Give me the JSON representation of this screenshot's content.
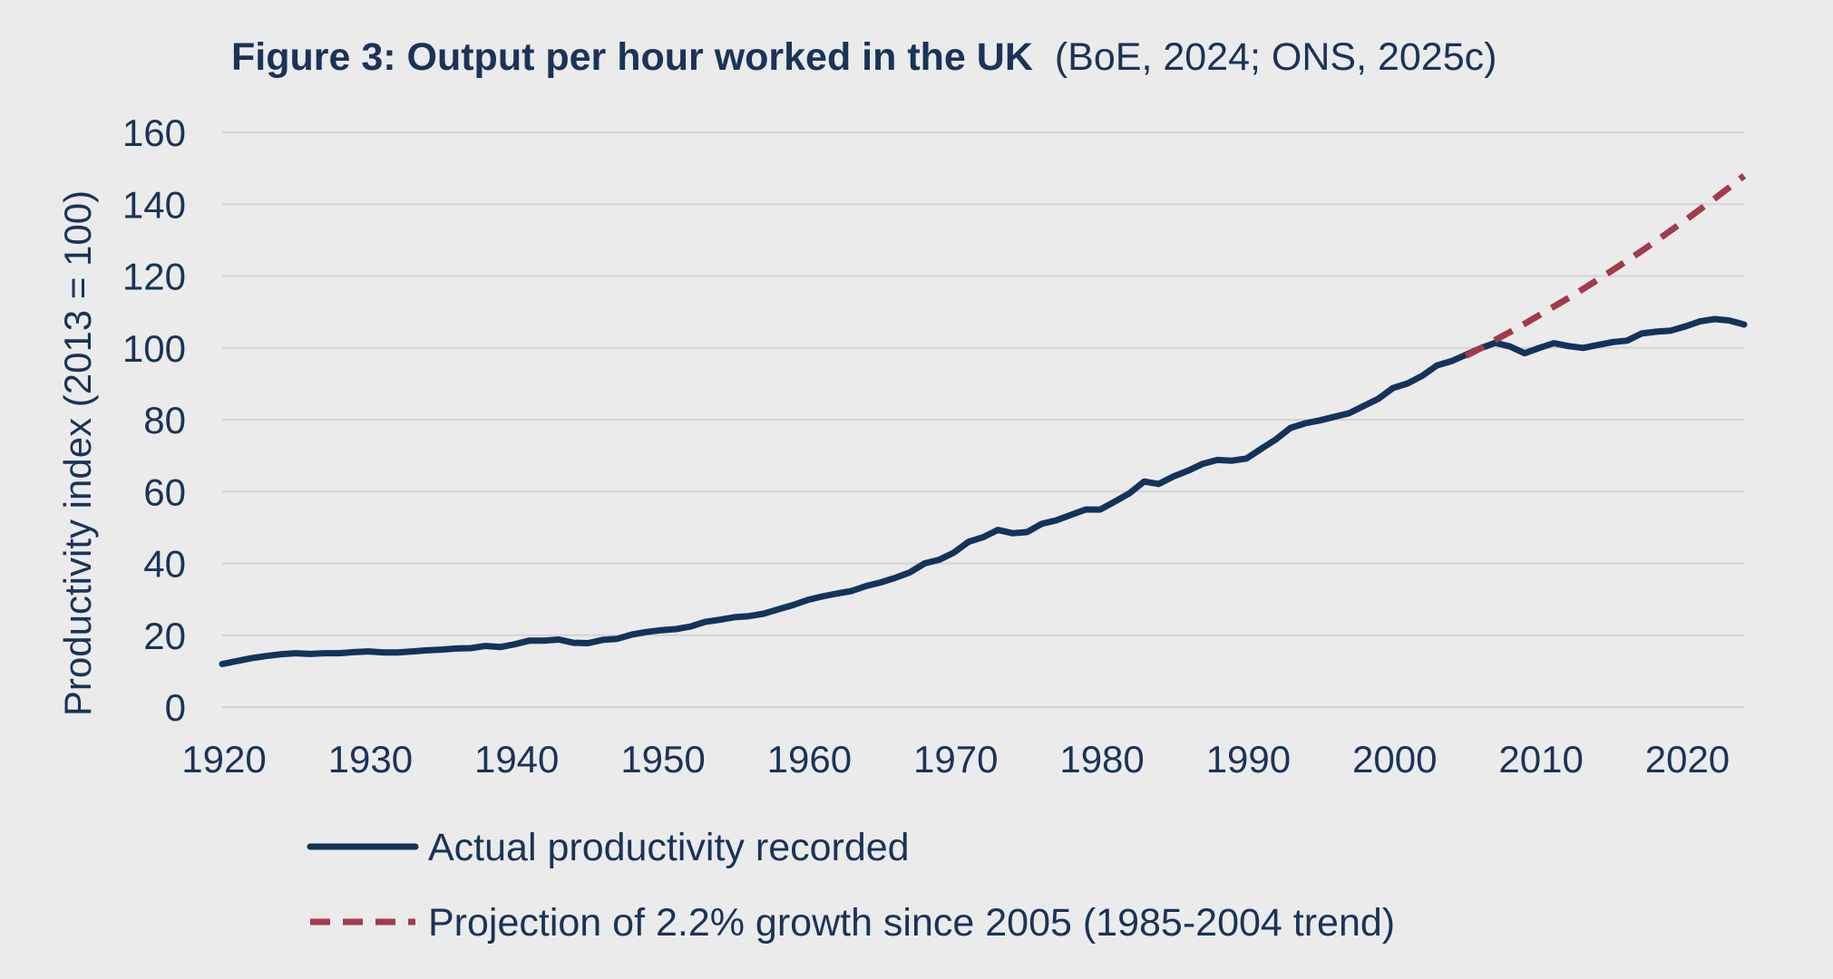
{
  "chart_data": {
    "type": "line",
    "title": "Figure 3: Output per hour worked in the UK",
    "subtitle": "(BoE, 2024; ONS, 2025c)",
    "xlabel": "",
    "ylabel": "Productivity index (2013 = 100)",
    "xlim": [
      1920,
      2024
    ],
    "ylim": [
      0,
      160
    ],
    "xticks": [
      "1920",
      "1930",
      "1940",
      "1950",
      "1960",
      "1970",
      "1980",
      "1990",
      "2000",
      "2010",
      "2020"
    ],
    "yticks": [
      "0",
      "20",
      "40",
      "60",
      "80",
      "100",
      "120",
      "140",
      "160"
    ],
    "grid": "horizontal",
    "legend_position": "bottom",
    "series": [
      {
        "name": "Actual productivity recorded",
        "color": "#13335a",
        "style": "solid",
        "x": [
          1920,
          1921,
          1922,
          1923,
          1924,
          1925,
          1926,
          1927,
          1928,
          1929,
          1930,
          1931,
          1932,
          1933,
          1934,
          1935,
          1936,
          1937,
          1938,
          1939,
          1940,
          1941,
          1942,
          1943,
          1944,
          1945,
          1946,
          1947,
          1948,
          1949,
          1950,
          1951,
          1952,
          1953,
          1954,
          1955,
          1956,
          1957,
          1958,
          1959,
          1960,
          1961,
          1962,
          1963,
          1964,
          1965,
          1966,
          1967,
          1968,
          1969,
          1970,
          1971,
          1972,
          1973,
          1974,
          1975,
          1976,
          1977,
          1978,
          1979,
          1980,
          1981,
          1982,
          1983,
          1984,
          1985,
          1986,
          1987,
          1988,
          1989,
          1990,
          1991,
          1992,
          1993,
          1994,
          1995,
          1996,
          1997,
          1998,
          1999,
          2000,
          2001,
          2002,
          2003,
          2004,
          2005,
          2006,
          2007,
          2008,
          2009,
          2010,
          2011,
          2012,
          2013,
          2014,
          2015,
          2016,
          2017,
          2018,
          2019,
          2020,
          2021,
          2022,
          2023,
          2024
        ],
        "values": [
          12,
          12.8,
          13.6,
          14.2,
          14.7,
          15,
          14.8,
          15,
          15,
          15.3,
          15.5,
          15.2,
          15.2,
          15.5,
          15.8,
          16,
          16.3,
          16.4,
          17,
          16.7,
          17.5,
          18.5,
          18.5,
          18.8,
          17.9,
          17.8,
          18.7,
          19,
          20.2,
          20.9,
          21.4,
          21.7,
          22.4,
          23.7,
          24.3,
          25,
          25.3,
          26,
          27.2,
          28.4,
          29.8,
          30.8,
          31.6,
          32.3,
          33.7,
          34.7,
          36,
          37.5,
          40,
          41,
          43,
          46,
          47.3,
          49.3,
          48.4,
          48.7,
          51,
          52,
          53.5,
          55,
          55,
          57.2,
          59.5,
          62.8,
          62.1,
          64.2,
          65.8,
          67.7,
          68.8,
          68.6,
          69.2,
          71.9,
          74.5,
          77.7,
          79,
          79.8,
          80.8,
          81.8,
          83.8,
          85.8,
          88.8,
          90.1,
          92.2,
          95.1,
          96.3,
          98.1,
          99.9,
          101.4,
          100.4,
          98.5,
          100,
          101.3,
          100.5,
          100,
          100.8,
          101.6,
          102,
          104,
          104.5,
          104.8,
          106,
          107.4,
          108,
          107.6,
          106.5
        ]
      },
      {
        "name": "Projection of 2.2% growth since 2005 (1985-2004 trend)",
        "color": "#a23a4c",
        "style": "dashed",
        "x": [
          2005,
          2006,
          2007,
          2008,
          2009,
          2010,
          2011,
          2012,
          2013,
          2014,
          2015,
          2016,
          2017,
          2018,
          2019,
          2020,
          2021,
          2022,
          2023,
          2024
        ],
        "values": [
          97.8,
          99.9,
          102.2,
          104.4,
          106.7,
          109.1,
          111.5,
          113.9,
          116.4,
          119,
          121.6,
          124.3,
          127,
          129.8,
          132.7,
          135.6,
          138.6,
          141.6,
          144.7,
          147.9
        ]
      }
    ]
  }
}
